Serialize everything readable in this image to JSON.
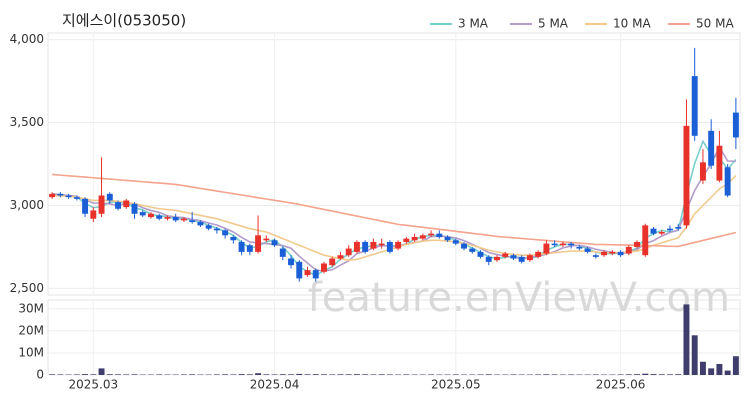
{
  "chart_data": [
    {
      "type": "candlestick",
      "title": "지에스이(053050)",
      "watermark": "feature.enViewV.com",
      "categories": [
        null,
        null,
        null,
        null,
        null,
        "2025.03",
        null,
        null,
        null,
        null,
        null,
        null,
        null,
        null,
        null,
        null,
        null,
        null,
        null,
        null,
        null,
        null,
        null,
        null,
        null,
        null,
        null,
        "2025.04",
        null,
        null,
        null,
        null,
        null,
        null,
        null,
        null,
        null,
        null,
        null,
        null,
        null,
        null,
        null,
        null,
        null,
        null,
        null,
        null,
        null,
        "2025.05",
        null,
        null,
        null,
        null,
        null,
        null,
        null,
        null,
        null,
        null,
        null,
        null,
        null,
        null,
        null,
        null,
        null,
        null,
        null,
        "2025.06",
        null,
        null,
        null,
        null,
        null,
        null,
        null,
        null,
        null,
        null,
        null,
        null,
        null,
        null
      ],
      "open": [
        3050,
        3070,
        3060,
        3050,
        3040,
        2920,
        2950,
        3070,
        3020,
        2990,
        3010,
        2960,
        2930,
        2940,
        2920,
        2930,
        2910,
        2910,
        2900,
        2880,
        2860,
        2850,
        2810,
        2780,
        2760,
        2720,
        2790,
        2790,
        2740,
        2680,
        2660,
        2580,
        2610,
        2600,
        2640,
        2680,
        2700,
        2720,
        2780,
        2740,
        2760,
        2780,
        2740,
        2780,
        2790,
        2800,
        2820,
        2830,
        2810,
        2790,
        2770,
        2740,
        2720,
        2690,
        2670,
        2690,
        2700,
        2690,
        2670,
        2690,
        2710,
        2770,
        2760,
        2770,
        2750,
        2740,
        2700,
        2700,
        2710,
        2720,
        2710,
        2750,
        2700,
        2860,
        2830,
        2860,
        2870,
        2880,
        3780,
        3150,
        3450,
        3150,
        3230,
        3560
      ],
      "high": [
        3080,
        3080,
        3070,
        3060,
        3050,
        2990,
        3290,
        3080,
        3030,
        3040,
        3020,
        2970,
        2960,
        2950,
        2940,
        2950,
        2930,
        2960,
        2910,
        2890,
        2870,
        2860,
        2820,
        2790,
        2770,
        2940,
        2820,
        2800,
        2750,
        2700,
        2670,
        2630,
        2620,
        2660,
        2690,
        2720,
        2760,
        2790,
        2790,
        2800,
        2800,
        2790,
        2790,
        2810,
        2830,
        2830,
        2850,
        2850,
        2820,
        2800,
        2780,
        2750,
        2730,
        2700,
        2700,
        2720,
        2710,
        2700,
        2710,
        2730,
        2790,
        2790,
        2780,
        2780,
        2760,
        2750,
        2710,
        2730,
        2730,
        2730,
        2760,
        2790,
        2890,
        2870,
        2850,
        2880,
        2890,
        3640,
        3950,
        3340,
        3520,
        3450,
        3250,
        3650
      ],
      "low": [
        3040,
        3050,
        3040,
        3030,
        2930,
        2900,
        2930,
        3010,
        2970,
        2980,
        2920,
        2930,
        2920,
        2910,
        2910,
        2900,
        2900,
        2890,
        2870,
        2850,
        2830,
        2800,
        2770,
        2700,
        2700,
        2710,
        2780,
        2750,
        2670,
        2620,
        2540,
        2570,
        2540,
        2590,
        2630,
        2670,
        2690,
        2710,
        2710,
        2730,
        2740,
        2710,
        2730,
        2770,
        2780,
        2790,
        2810,
        2800,
        2780,
        2760,
        2730,
        2710,
        2680,
        2640,
        2660,
        2680,
        2670,
        2650,
        2660,
        2680,
        2700,
        2750,
        2750,
        2740,
        2730,
        2710,
        2680,
        2690,
        2700,
        2690,
        2700,
        2740,
        2690,
        2820,
        2820,
        2840,
        2850,
        2860,
        3390,
        3130,
        3220,
        3140,
        3050,
        3340
      ],
      "close": [
        3070,
        3060,
        3050,
        3040,
        2950,
        2970,
        3060,
        3030,
        2980,
        3030,
        2950,
        2940,
        2950,
        2920,
        2930,
        2910,
        2920,
        2900,
        2880,
        2860,
        2850,
        2820,
        2790,
        2720,
        2720,
        2820,
        2800,
        2760,
        2690,
        2640,
        2560,
        2610,
        2560,
        2650,
        2680,
        2700,
        2740,
        2780,
        2720,
        2780,
        2770,
        2720,
        2780,
        2800,
        2810,
        2820,
        2830,
        2810,
        2790,
        2770,
        2740,
        2720,
        2690,
        2660,
        2690,
        2710,
        2680,
        2660,
        2700,
        2720,
        2770,
        2760,
        2770,
        2760,
        2740,
        2720,
        2690,
        2720,
        2720,
        2700,
        2750,
        2780,
        2880,
        2830,
        2840,
        2850,
        2860,
        3480,
        3420,
        3260,
        3240,
        3360,
        3060,
        3410
      ],
      "up_color": "#e8312a",
      "down_color": "#1a5fd6",
      "series": [
        {
          "name": "3 MA",
          "color": "#79cfcb",
          "values": [
            3070,
            3065,
            3060,
            3050,
            3013,
            2987,
            2993,
            3020,
            3023,
            3013,
            2987,
            2973,
            2947,
            2937,
            2933,
            2920,
            2920,
            2910,
            2900,
            2880,
            2863,
            2843,
            2820,
            2777,
            2743,
            2753,
            2780,
            2793,
            2750,
            2697,
            2630,
            2603,
            2577,
            2607,
            2630,
            2677,
            2707,
            2740,
            2747,
            2760,
            2757,
            2757,
            2757,
            2767,
            2797,
            2810,
            2820,
            2820,
            2810,
            2790,
            2767,
            2743,
            2717,
            2690,
            2680,
            2687,
            2693,
            2683,
            2680,
            2693,
            2730,
            2750,
            2767,
            2763,
            2757,
            2740,
            2717,
            2710,
            2710,
            2713,
            2723,
            2743,
            2803,
            2830,
            2850,
            2840,
            2850,
            3063,
            3253,
            3387,
            3307,
            3287,
            3220,
            3277
          ]
        },
        {
          "name": "5 MA",
          "color": "#b39ccc",
          "values": [
            3070,
            3065,
            3060,
            3055,
            3034,
            3014,
            3014,
            3010,
            2998,
            3014,
            3010,
            2986,
            2970,
            2958,
            2938,
            2930,
            2926,
            2916,
            2908,
            2894,
            2882,
            2862,
            2840,
            2808,
            2780,
            2774,
            2770,
            2764,
            2758,
            2742,
            2694,
            2652,
            2612,
            2604,
            2612,
            2640,
            2666,
            2710,
            2724,
            2744,
            2758,
            2754,
            2754,
            2768,
            2776,
            2786,
            2812,
            2814,
            2812,
            2804,
            2788,
            2766,
            2742,
            2716,
            2704,
            2694,
            2688,
            2680,
            2688,
            2694,
            2706,
            2722,
            2744,
            2756,
            2760,
            2750,
            2736,
            2726,
            2718,
            2710,
            2716,
            2734,
            2770,
            2788,
            2816,
            2836,
            2852,
            2972,
            3090,
            3174,
            3252,
            3352,
            3268,
            3266
          ]
        },
        {
          "name": "10 MA",
          "color": "#f2c98d",
          "values": [
            3060,
            3058,
            3055,
            3050,
            3040,
            3030,
            3030,
            3030,
            3025,
            3020,
            3010,
            3000,
            2990,
            2980,
            2975,
            2970,
            2960,
            2950,
            2940,
            2930,
            2920,
            2905,
            2890,
            2875,
            2860,
            2850,
            2840,
            2820,
            2800,
            2780,
            2760,
            2740,
            2720,
            2700,
            2690,
            2680,
            2670,
            2675,
            2690,
            2705,
            2720,
            2735,
            2750,
            2765,
            2775,
            2785,
            2790,
            2790,
            2785,
            2780,
            2770,
            2760,
            2745,
            2730,
            2720,
            2710,
            2705,
            2700,
            2700,
            2705,
            2710,
            2715,
            2720,
            2725,
            2725,
            2725,
            2720,
            2715,
            2715,
            2715,
            2720,
            2725,
            2740,
            2760,
            2775,
            2790,
            2805,
            2870,
            2950,
            3000,
            3050,
            3100,
            3130,
            3180
          ]
        },
        {
          "name": "50 MA",
          "color": "#f4a38c",
          "values": [
            3187,
            3183,
            3179,
            3175,
            3171,
            3167,
            3163,
            3159,
            3155,
            3151,
            3147,
            3143,
            3139,
            3135,
            3131,
            3127,
            3119,
            3111,
            3103,
            3095,
            3087,
            3079,
            3071,
            3063,
            3055,
            3047,
            3039,
            3031,
            3023,
            3015,
            3006,
            2996,
            2986,
            2976,
            2966,
            2956,
            2946,
            2936,
            2926,
            2916,
            2906,
            2896,
            2886,
            2880,
            2874,
            2868,
            2862,
            2856,
            2850,
            2844,
            2838,
            2832,
            2826,
            2820,
            2813,
            2809,
            2805,
            2801,
            2797,
            2793,
            2789,
            2785,
            2781,
            2777,
            2773,
            2769,
            2765,
            2764,
            2763,
            2762,
            2761,
            2759,
            2758,
            2757,
            2756,
            2754,
            2753,
            2765,
            2777,
            2789,
            2801,
            2813,
            2825,
            2837
          ]
        }
      ],
      "ylim": [
        2460,
        4040
      ],
      "yticks": [
        {
          "value": 2500,
          "label": "2,500"
        },
        {
          "value": 3000,
          "label": "3,000"
        },
        {
          "value": 3500,
          "label": "3,500"
        },
        {
          "value": 4000,
          "label": "4,000"
        }
      ],
      "grid": true,
      "legend": "top-right"
    },
    {
      "type": "bar",
      "color": "#3f3d6b",
      "values": [
        300000,
        250000,
        200000,
        250000,
        400000,
        300000,
        3000000,
        350000,
        300000,
        250000,
        300000,
        200000,
        200000,
        250000,
        200000,
        200000,
        250000,
        300000,
        200000,
        200000,
        250000,
        300000,
        250000,
        400000,
        300000,
        800000,
        300000,
        250000,
        350000,
        300000,
        500000,
        300000,
        350000,
        300000,
        250000,
        300000,
        300000,
        350000,
        300000,
        250000,
        300000,
        250000,
        200000,
        250000,
        200000,
        200000,
        250000,
        200000,
        200000,
        250000,
        200000,
        200000,
        250000,
        300000,
        200000,
        200000,
        250000,
        200000,
        200000,
        250000,
        300000,
        250000,
        200000,
        250000,
        200000,
        200000,
        250000,
        200000,
        200000,
        250000,
        300000,
        350000,
        600000,
        400000,
        300000,
        300000,
        350000,
        32000000,
        18000000,
        6000000,
        3000000,
        5000000,
        2000000,
        8500000
      ],
      "ylim": [
        0,
        34000000
      ],
      "yticks": [
        0,
        {
          "value": 10000000,
          "label": "10M"
        },
        {
          "value": 20000000,
          "label": "20M"
        },
        {
          "value": 30000000,
          "label": "30M"
        }
      ],
      "grid": true
    }
  ]
}
